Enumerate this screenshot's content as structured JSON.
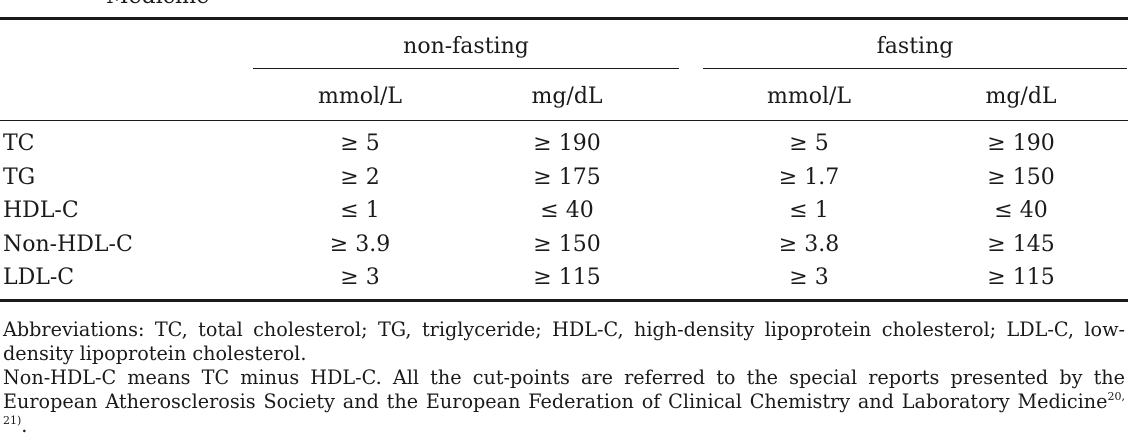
{
  "caption": {
    "cut_text": "Medicine"
  },
  "table": {
    "groups": [
      "non-fasting",
      "fasting"
    ],
    "units": [
      "mmol/L",
      "mg/dL",
      "mmol/L",
      "mg/dL"
    ],
    "rows": [
      {
        "label": "TC",
        "values": [
          "≥ 5",
          "≥ 190",
          "≥ 5",
          "≥ 190"
        ]
      },
      {
        "label": "TG",
        "values": [
          "≥ 2",
          "≥ 175",
          "≥ 1.7",
          "≥ 150"
        ]
      },
      {
        "label": "HDL-C",
        "values": [
          "≤ 1",
          "≤ 40",
          "≤ 1",
          "≤ 40"
        ]
      },
      {
        "label": "Non-HDL-C",
        "values": [
          "≥ 3.9",
          "≥ 150",
          "≥ 3.8",
          "≥ 145"
        ]
      },
      {
        "label": "LDL-C",
        "values": [
          "≥ 3",
          "≥ 115",
          "≥ 3",
          "≥ 115"
        ]
      }
    ]
  },
  "notes": {
    "abbreviations": "Abbreviations: TC, total cholesterol; TG, triglyceride; HDL-C, high-density lipoprotein cholesterol; LDL-C, low-density lipoprotein cholesterol.",
    "definition": "Non-HDL-C means TC minus HDL-C. All the cut-points are referred to the special reports presented by the European Atherosclerosis Society and the European Federation of Clinical Chemistry and Laboratory Medicine",
    "reference": "20, 21)",
    "end_punct": "."
  }
}
